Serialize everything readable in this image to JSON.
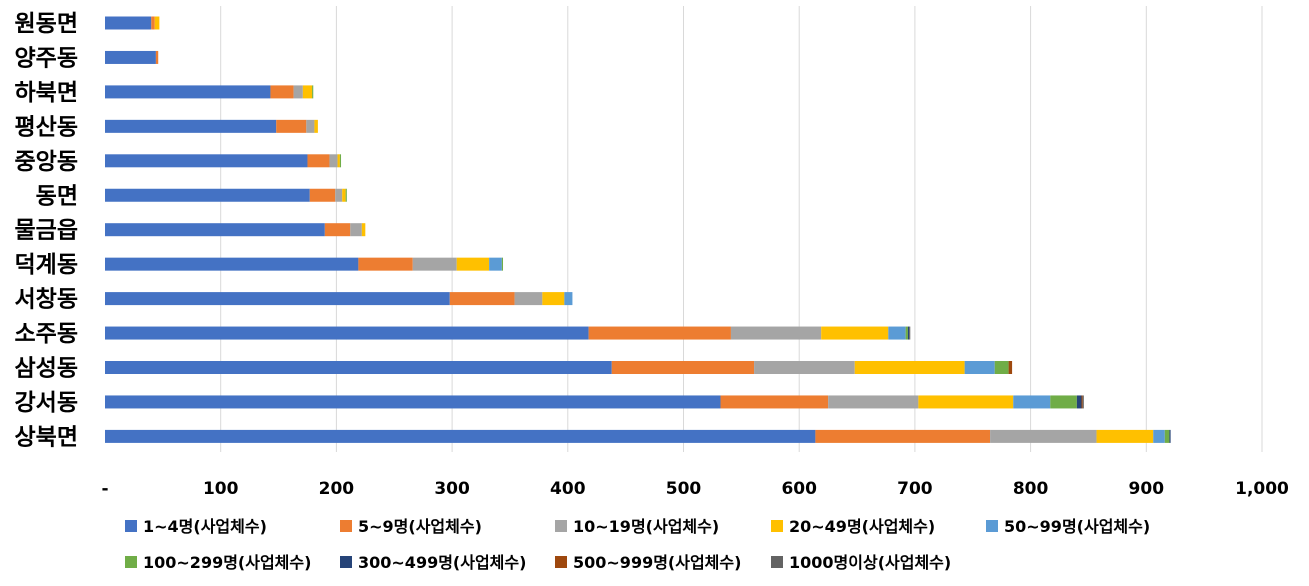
{
  "chart_data": {
    "type": "bar",
    "orientation": "horizontal",
    "stacked": true,
    "title": "",
    "xlabel": "",
    "ylabel": "",
    "xlim": [
      0,
      1000
    ],
    "grid": true,
    "legend_position": "bottom",
    "x_tick_labels": [
      "-",
      "100",
      "200",
      "300",
      "400",
      "500",
      "600",
      "700",
      "800",
      "900",
      "1,000"
    ],
    "x_tick_values": [
      0,
      100,
      200,
      300,
      400,
      500,
      600,
      700,
      800,
      900,
      1000
    ],
    "categories": [
      "원동면",
      "양주동",
      "하북면",
      "평산동",
      "중앙동",
      "동면",
      "물금읍",
      "덕계동",
      "서창동",
      "소주동",
      "삼성동",
      "강서동",
      "상북면"
    ],
    "series": [
      {
        "name": "1~4명(사업체수)",
        "color": "#4472C4",
        "values": [
          40,
          44,
          143,
          148,
          175,
          177,
          190,
          219,
          298,
          418,
          438,
          532,
          614
        ]
      },
      {
        "name": "5~9명(사업체수)",
        "color": "#ED7D31",
        "values": [
          3,
          2,
          20,
          26,
          19,
          22,
          22,
          47,
          56,
          123,
          123,
          93,
          151
        ]
      },
      {
        "name": "10~19명(사업체수)",
        "color": "#A5A5A5",
        "values": [
          0,
          0,
          8,
          7,
          7,
          6,
          10,
          38,
          24,
          78,
          87,
          78,
          92
        ]
      },
      {
        "name": "20~49명(사업체수)",
        "color": "#FFC000",
        "values": [
          4,
          0,
          8,
          3,
          2,
          3,
          3,
          28,
          19,
          58,
          95,
          82,
          49
        ]
      },
      {
        "name": "50~99명(사업체수)",
        "color": "#5B9BD5",
        "values": [
          0,
          0,
          0,
          0,
          0,
          0,
          0,
          11,
          7,
          15,
          26,
          32,
          10
        ]
      },
      {
        "name": "100~299명(사업체수)",
        "color": "#70AD47",
        "values": [
          0,
          0,
          1,
          0,
          1,
          1,
          0,
          1,
          0,
          2,
          12,
          23,
          4
        ]
      },
      {
        "name": "300~499명(사업체수)",
        "color": "#264478",
        "values": [
          0,
          0,
          0,
          0,
          0,
          0,
          0,
          0,
          0,
          1,
          0,
          4,
          1
        ]
      },
      {
        "name": "500~999명(사업체수)",
        "color": "#9E480E",
        "values": [
          0,
          0,
          0,
          0,
          0,
          0,
          0,
          0,
          0,
          0,
          3,
          1,
          0
        ]
      },
      {
        "name": "1000명이상(사업체수)",
        "color": "#636363",
        "values": [
          0,
          0,
          0,
          0,
          0,
          0,
          0,
          0,
          0,
          1,
          0,
          1,
          0
        ]
      }
    ]
  }
}
